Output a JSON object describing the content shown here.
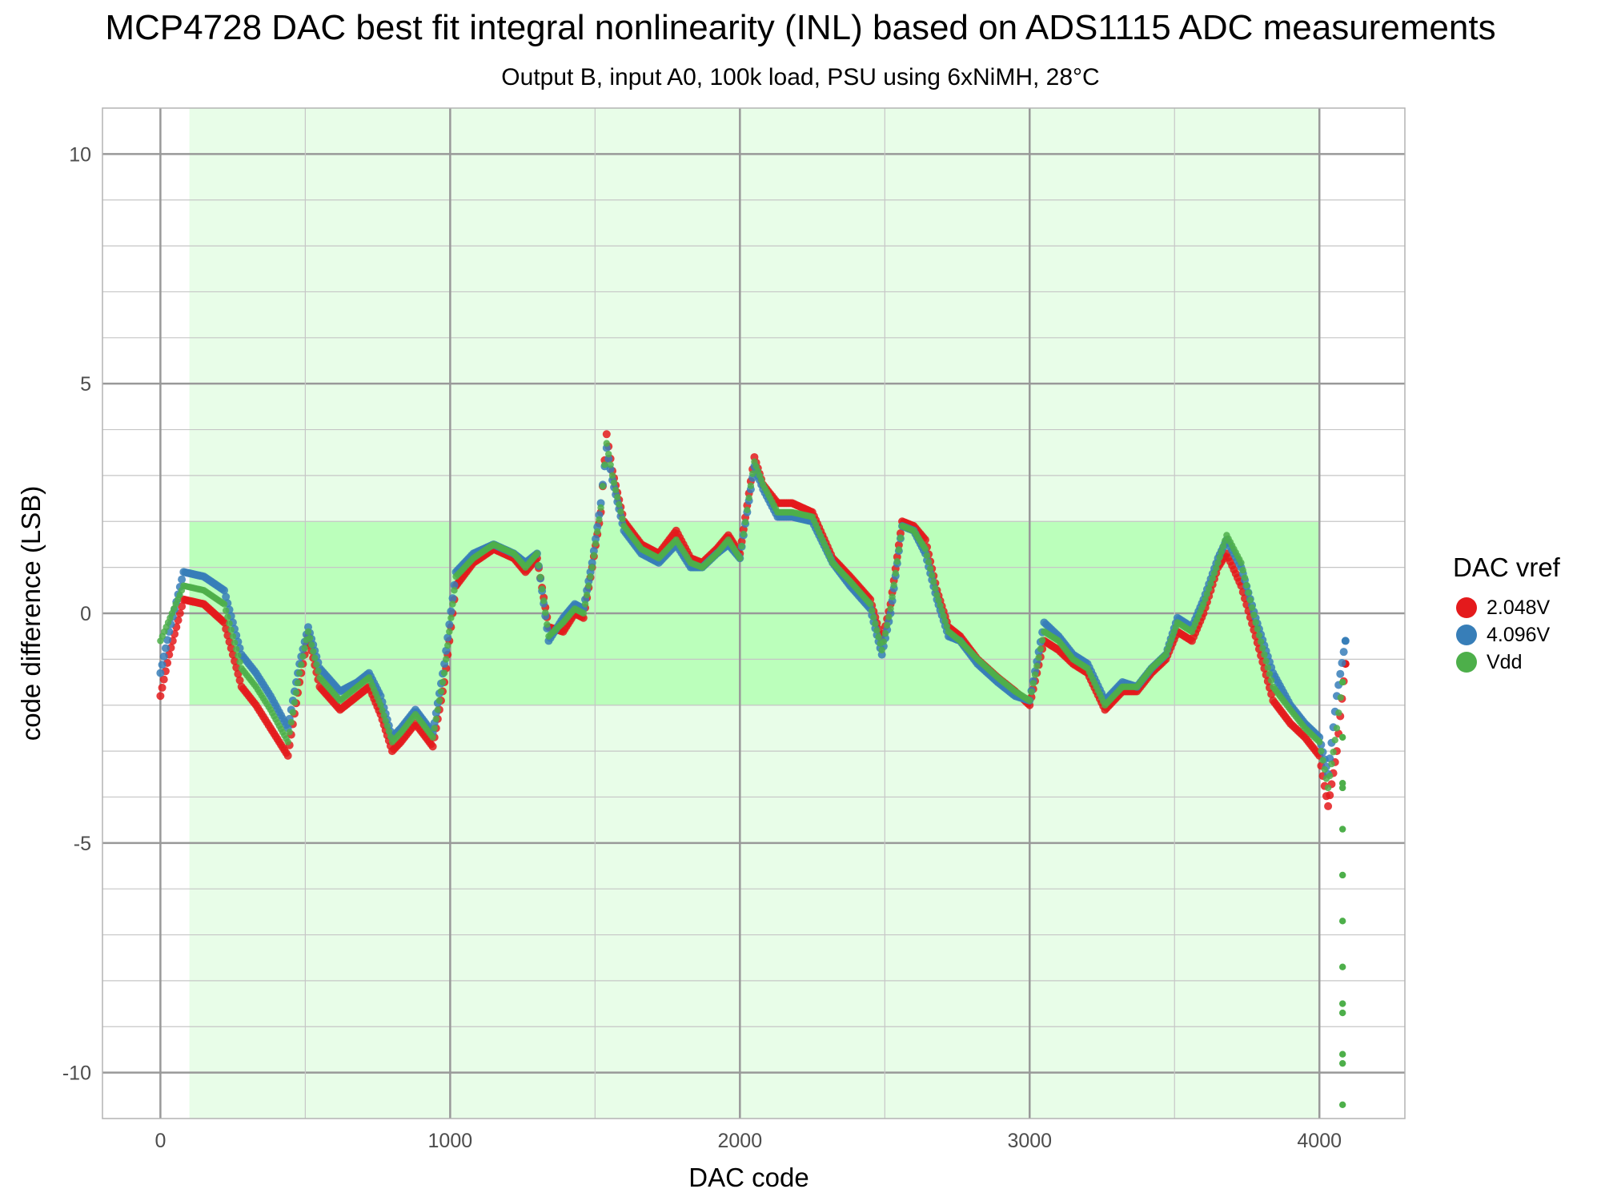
{
  "chart_data": {
    "type": "scatter",
    "title": "MCP4728 DAC best fit integral nonlinearity (INL) based on ADS1115 ADC measurements",
    "subtitle": "Output B, input A0, 100k load, PSU using 6xNiMH, 28°C",
    "xlabel": "DAC code",
    "ylabel": "code difference (LSB)",
    "xlim": [
      -200,
      4295
    ],
    "ylim": [
      -11,
      11
    ],
    "xticks": [
      0,
      1000,
      2000,
      3000,
      4000
    ],
    "xtick_labels": [
      "0",
      "1000",
      "2000",
      "3000",
      "4000"
    ],
    "yticks": [
      -10,
      -5,
      0,
      5,
      10
    ],
    "ytick_labels": [
      "-10",
      "-5",
      "0",
      "5",
      "10"
    ],
    "grid": true,
    "legend_title": "DAC vref",
    "legend_position": "right",
    "shaded_regions": [
      {
        "x": [
          100,
          4000
        ],
        "y": [
          -11,
          11
        ],
        "color": "#e8fde8"
      },
      {
        "x": [
          100,
          4000
        ],
        "y": [
          -2,
          2
        ],
        "color": "#bbffbb"
      }
    ],
    "series": [
      {
        "name": "2.048V",
        "color": "#e41a1c",
        "x": [
          0,
          30,
          80,
          150,
          220,
          280,
          330,
          380,
          440,
          480,
          510,
          550,
          620,
          680,
          720,
          760,
          800,
          830,
          880,
          940,
          980,
          1020,
          1080,
          1150,
          1220,
          1260,
          1300,
          1340,
          1390,
          1430,
          1460,
          1490,
          1520,
          1540,
          1560,
          1600,
          1660,
          1720,
          1780,
          1830,
          1870,
          1920,
          1960,
          2000,
          2050,
          2080,
          2130,
          2180,
          2250,
          2320,
          2380,
          2450,
          2490,
          2520,
          2560,
          2600,
          2640,
          2680,
          2720,
          2760,
          2820,
          2890,
          2950,
          3000,
          3050,
          3100,
          3150,
          3200,
          3260,
          3320,
          3370,
          3420,
          3470,
          3510,
          3560,
          3600,
          3650,
          3680,
          3730,
          3780,
          3840,
          3900,
          3950,
          4000,
          4030,
          4060,
          4090
        ],
        "y": [
          -1.8,
          -0.9,
          0.3,
          0.2,
          -0.2,
          -1.6,
          -2.0,
          -2.5,
          -3.1,
          -1.5,
          -0.5,
          -1.6,
          -2.1,
          -1.8,
          -1.6,
          -2.2,
          -3.0,
          -2.8,
          -2.4,
          -2.9,
          -1.5,
          0.6,
          1.1,
          1.4,
          1.2,
          0.9,
          1.2,
          -0.3,
          -0.4,
          0.0,
          -0.1,
          1.0,
          2.2,
          3.9,
          3.1,
          2.0,
          1.5,
          1.3,
          1.8,
          1.2,
          1.1,
          1.4,
          1.7,
          1.3,
          3.4,
          2.8,
          2.4,
          2.4,
          2.2,
          1.2,
          0.8,
          0.3,
          -0.6,
          0.2,
          2.0,
          1.9,
          1.6,
          0.5,
          -0.3,
          -0.5,
          -1.0,
          -1.4,
          -1.7,
          -2.0,
          -0.6,
          -0.8,
          -1.1,
          -1.3,
          -2.1,
          -1.7,
          -1.7,
          -1.3,
          -1.0,
          -0.4,
          -0.6,
          0.0,
          1.0,
          1.3,
          0.6,
          -0.5,
          -1.9,
          -2.4,
          -2.7,
          -3.1,
          -4.2,
          -3.0,
          -1.1
        ]
      },
      {
        "name": "4.096V",
        "color": "#377eb8",
        "x": [
          0,
          30,
          80,
          150,
          220,
          280,
          330,
          380,
          440,
          480,
          510,
          550,
          620,
          680,
          720,
          760,
          800,
          830,
          880,
          940,
          980,
          1020,
          1080,
          1150,
          1220,
          1260,
          1300,
          1340,
          1390,
          1430,
          1460,
          1490,
          1520,
          1540,
          1560,
          1600,
          1660,
          1720,
          1780,
          1830,
          1870,
          1920,
          1960,
          2000,
          2050,
          2080,
          2130,
          2180,
          2250,
          2320,
          2380,
          2450,
          2490,
          2520,
          2560,
          2600,
          2640,
          2680,
          2720,
          2760,
          2820,
          2890,
          2950,
          3000,
          3050,
          3100,
          3150,
          3200,
          3260,
          3320,
          3370,
          3420,
          3470,
          3510,
          3560,
          3600,
          3650,
          3680,
          3730,
          3780,
          3840,
          3900,
          3950,
          4000,
          4030,
          4060,
          4090
        ],
        "y": [
          -1.3,
          -0.4,
          0.9,
          0.8,
          0.5,
          -0.9,
          -1.3,
          -1.8,
          -2.5,
          -1.1,
          -0.3,
          -1.2,
          -1.7,
          -1.5,
          -1.3,
          -1.8,
          -2.7,
          -2.5,
          -2.1,
          -2.6,
          -1.1,
          0.9,
          1.3,
          1.5,
          1.3,
          1.1,
          1.3,
          -0.6,
          -0.1,
          0.2,
          0.1,
          1.1,
          2.4,
          3.6,
          2.9,
          1.8,
          1.3,
          1.1,
          1.5,
          1.0,
          1.0,
          1.3,
          1.5,
          1.2,
          3.2,
          2.7,
          2.1,
          2.1,
          2.0,
          1.1,
          0.6,
          0.1,
          -0.9,
          0.0,
          1.9,
          1.8,
          1.3,
          0.3,
          -0.5,
          -0.6,
          -1.1,
          -1.5,
          -1.8,
          -1.9,
          -0.2,
          -0.5,
          -0.9,
          -1.1,
          -1.9,
          -1.5,
          -1.6,
          -1.2,
          -0.9,
          -0.1,
          -0.3,
          0.3,
          1.2,
          1.6,
          1.0,
          -0.1,
          -1.3,
          -2.0,
          -2.4,
          -2.7,
          -3.5,
          -1.8,
          -0.6
        ]
      },
      {
        "name": "Vdd",
        "color": "#4daf4a",
        "x": [
          0,
          20,
          40,
          60,
          80,
          150,
          220,
          280,
          330,
          380,
          440,
          480,
          510,
          550,
          620,
          680,
          720,
          760,
          800,
          830,
          880,
          940,
          980,
          1020,
          1080,
          1150,
          1220,
          1260,
          1300,
          1340,
          1390,
          1430,
          1460,
          1490,
          1520,
          1540,
          1560,
          1600,
          1660,
          1720,
          1780,
          1830,
          1870,
          1920,
          1960,
          2000,
          2050,
          2080,
          2130,
          2180,
          2250,
          2320,
          2380,
          2450,
          2490,
          2520,
          2560,
          2600,
          2640,
          2680,
          2720,
          2760,
          2820,
          2890,
          2950,
          3000,
          3050,
          3100,
          3150,
          3200,
          3260,
          3320,
          3370,
          3420,
          3470,
          3510,
          3560,
          3600,
          3650,
          3680,
          3730,
          3780,
          3840,
          3900,
          3950,
          4000,
          4030,
          4060,
          4080
        ],
        "y": [
          -0.6,
          -0.3,
          0.0,
          0.3,
          0.6,
          0.5,
          0.2,
          -1.2,
          -1.6,
          -2.1,
          -2.8,
          -1.3,
          -0.4,
          -1.4,
          -1.9,
          -1.6,
          -1.4,
          -2.0,
          -2.8,
          -2.6,
          -2.2,
          -2.7,
          -1.3,
          0.8,
          1.2,
          1.5,
          1.3,
          1.0,
          1.3,
          -0.5,
          -0.2,
          0.1,
          0.0,
          1.0,
          2.3,
          3.7,
          3.0,
          1.9,
          1.4,
          1.2,
          1.6,
          1.1,
          1.0,
          1.3,
          1.6,
          1.2,
          3.3,
          2.8,
          2.2,
          2.2,
          2.1,
          1.1,
          0.7,
          0.2,
          -0.8,
          0.1,
          1.9,
          1.8,
          1.4,
          0.4,
          -0.4,
          -0.6,
          -1.0,
          -1.4,
          -1.7,
          -1.9,
          -0.4,
          -0.6,
          -1.0,
          -1.2,
          -2.0,
          -1.6,
          -1.6,
          -1.2,
          -0.9,
          -0.2,
          -0.4,
          0.2,
          1.1,
          1.7,
          1.1,
          -0.2,
          -1.6,
          -2.1,
          -2.5,
          -2.8,
          -3.8,
          -2.5,
          -1.5
        ]
      },
      {
        "name": "",
        "color": "#4daf4a",
        "x": [
          4080,
          4080,
          4080,
          4080,
          4080,
          4080,
          4080,
          4080,
          4080,
          4080,
          4080,
          4080
        ],
        "y": [
          -2.7,
          -3.7,
          -3.8,
          -4.7,
          -5.7,
          -6.7,
          -7.7,
          -8.5,
          -8.7,
          -9.6,
          -9.8,
          -10.7
        ]
      }
    ]
  }
}
